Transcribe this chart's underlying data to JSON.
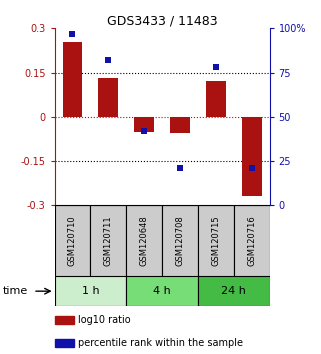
{
  "title": "GDS3433 / 11483",
  "samples": [
    "GSM120710",
    "GSM120711",
    "GSM120648",
    "GSM120708",
    "GSM120715",
    "GSM120716"
  ],
  "log10_ratio": [
    0.255,
    0.13,
    -0.05,
    -0.055,
    0.12,
    -0.27
  ],
  "percentile_rank": [
    97,
    82,
    42,
    21,
    78,
    21
  ],
  "bar_color": "#aa1111",
  "dot_color": "#1111aa",
  "ylim_left": [
    -0.3,
    0.3
  ],
  "ylim_right": [
    0,
    100
  ],
  "yticks_left": [
    -0.3,
    -0.15,
    0.0,
    0.15,
    0.3
  ],
  "yticks_right": [
    0,
    25,
    50,
    75,
    100
  ],
  "ytick_labels_left": [
    "-0.3",
    "-0.15",
    "0",
    "0.15",
    "0.3"
  ],
  "ytick_labels_right": [
    "0",
    "25",
    "50",
    "75",
    "100%"
  ],
  "hlines": [
    0.15,
    -0.15
  ],
  "hline_zero_color": "#cc0000",
  "hline_dotted_color": "#000000",
  "groups": [
    {
      "label": "1 h",
      "indices": [
        0,
        1
      ],
      "color": "#cceecc"
    },
    {
      "label": "4 h",
      "indices": [
        2,
        3
      ],
      "color": "#77dd77"
    },
    {
      "label": "24 h",
      "indices": [
        4,
        5
      ],
      "color": "#44bb44"
    }
  ],
  "time_label": "time",
  "legend": [
    {
      "color": "#aa1111",
      "label": "log10 ratio"
    },
    {
      "color": "#1111aa",
      "label": "percentile rank within the sample"
    }
  ],
  "bg_color": "#ffffff",
  "sample_box_color": "#cccccc",
  "bar_width": 0.55
}
